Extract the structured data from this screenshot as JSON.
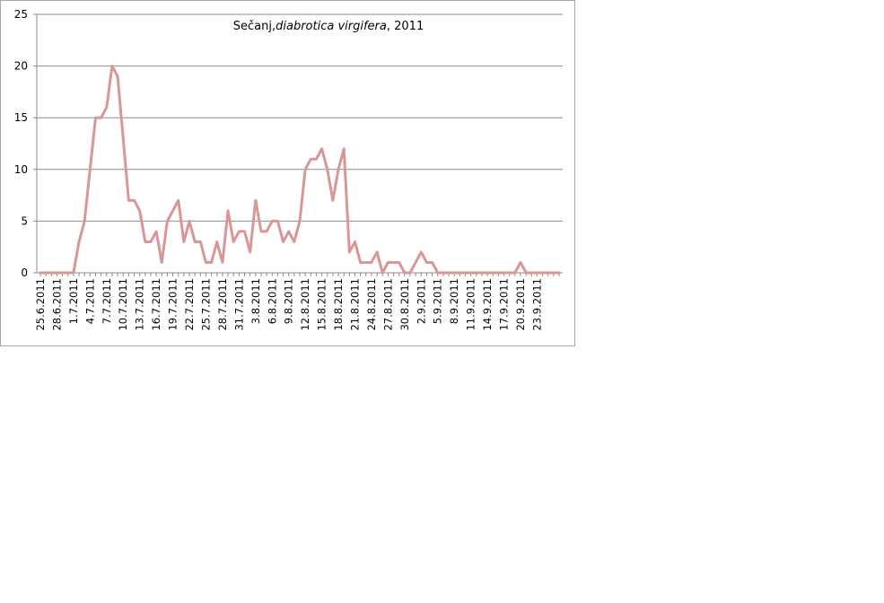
{
  "chart_data": {
    "type": "line",
    "title_parts": [
      {
        "text": "Sečanj,",
        "italic": false
      },
      {
        "text": "diabrotica virgifera",
        "italic": true
      },
      {
        "text": ", 2011",
        "italic": false
      }
    ],
    "xlabel": "",
    "ylabel": "",
    "ylim": [
      0,
      25
    ],
    "yticks": [
      "0",
      "5",
      "10",
      "15",
      "20",
      "25"
    ],
    "grid": true,
    "legend": "none",
    "color": "#d99694",
    "x_tick_labels": [
      "25.6.2011",
      "28.6.2011",
      "1.7.2011",
      "4.7.2011",
      "7.7.2011",
      "10.7.2011",
      "13.7.2011",
      "16.7.2011",
      "19.7.2011",
      "22.7.2011",
      "25.7.2011",
      "28.7.2011",
      "31.7.2011",
      "3.8.2011",
      "6.8.2011",
      "9.8.2011",
      "12.8.2011",
      "15.8.2011",
      "18.8.2011",
      "21.8.2011",
      "24.8.2011",
      "27.8.2011",
      "30.8.2011",
      "2.9.2011",
      "5.9.2011",
      "8.9.2011",
      "11.9.2011",
      "14.9.2011",
      "17.9.2011",
      "20.9.2011",
      "23.9.2011"
    ],
    "x_start": "25.6.2011",
    "x_end": "26.9.2011",
    "series": [
      {
        "values": [
          0,
          0,
          0,
          0,
          0,
          0,
          0,
          3,
          5,
          10,
          15,
          15,
          16,
          20,
          19,
          13,
          7,
          7,
          6,
          3,
          3,
          4,
          1,
          5,
          6,
          7,
          3,
          5,
          3,
          3,
          1,
          1,
          3,
          1,
          6,
          3,
          4,
          4,
          2,
          7,
          4,
          4,
          5,
          5,
          3,
          4,
          3,
          5,
          10,
          11,
          11,
          12,
          10,
          7,
          10,
          12,
          2,
          3,
          1,
          1,
          1,
          2,
          0,
          1,
          1,
          1,
          0,
          0,
          1,
          2,
          1,
          1,
          0,
          0,
          0,
          0,
          0,
          0,
          0,
          0,
          0,
          0,
          0,
          0,
          0,
          0,
          0,
          1,
          0,
          0,
          0,
          0,
          0,
          0,
          0
        ]
      }
    ]
  }
}
